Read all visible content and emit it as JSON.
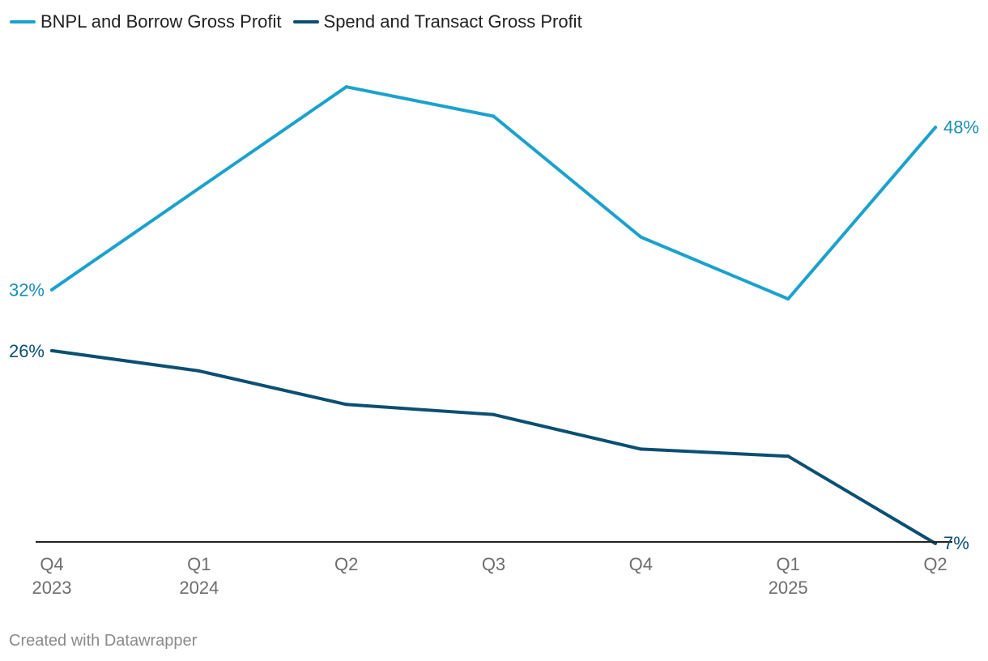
{
  "legend": [
    {
      "label": "BNPL and Borrow Gross Profit",
      "color": "#1ba2cc"
    },
    {
      "label": "Spend and Transact Gross Profit",
      "color": "#0b4f73"
    }
  ],
  "footer": "Created with Datawrapper",
  "colors": {
    "bnpl_line": "#1ba2cc",
    "bnpl_label": "#1a8fb3",
    "spend_line": "#0b4f73",
    "spend_label": "#0b4f73",
    "axis": "#222222"
  },
  "chart_data": {
    "type": "line",
    "title": "",
    "xlabel": "",
    "ylabel": "",
    "grid": false,
    "ylim": [
      3,
      58
    ],
    "categories": [
      {
        "quarter": "Q4",
        "year": "2023"
      },
      {
        "quarter": "Q1",
        "year": "2024"
      },
      {
        "quarter": "Q2",
        "year": ""
      },
      {
        "quarter": "Q3",
        "year": ""
      },
      {
        "quarter": "Q4",
        "year": ""
      },
      {
        "quarter": "Q1",
        "year": "2025"
      },
      {
        "quarter": "Q2",
        "year": ""
      }
    ],
    "series": [
      {
        "name": "BNPL and Borrow Gross Profit",
        "values": [
          32,
          42,
          52,
          49.1,
          37.2,
          31.1,
          48
        ],
        "start_label": "32%",
        "end_label": "48%"
      },
      {
        "name": "Spend and Transact Gross Profit",
        "values": [
          26,
          24,
          20.7,
          19.7,
          16.3,
          15.6,
          7
        ],
        "start_label": "26%",
        "end_label": "7%"
      }
    ]
  }
}
